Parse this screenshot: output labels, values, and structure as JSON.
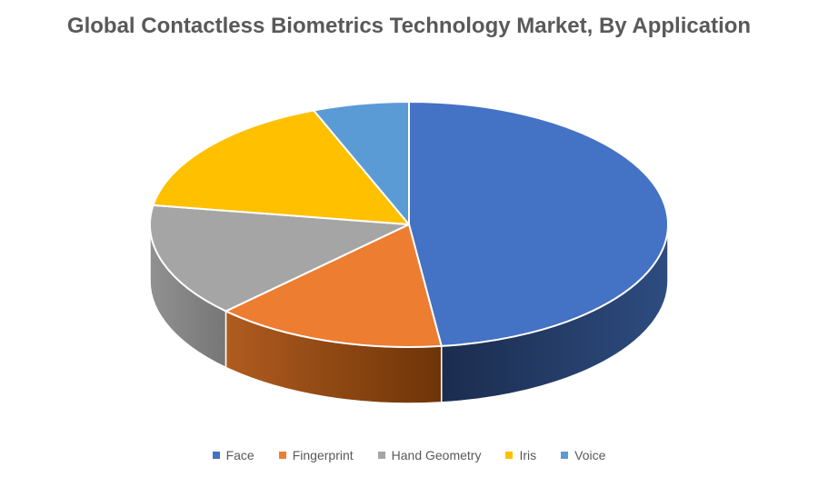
{
  "chart_data": {
    "type": "pie",
    "style": "3d",
    "title": "Global Contactless Biometrics Technology Market, By Application",
    "title_color": "#595959",
    "background_color": "#ffffff",
    "legend_position": "bottom",
    "legend_text_color": "#595959",
    "direction": "clockwise",
    "start_angle_deg": 0,
    "data_labels_shown": false,
    "categories": [
      "Face",
      "Fingerprint",
      "Hand Geometry",
      "Iris",
      "Voice"
    ],
    "values": [
      48,
      14.5,
      15,
      16.5,
      6
    ],
    "values_are_estimated_percent": true,
    "colors": [
      "#4472C4",
      "#ED7D31",
      "#A5A5A5",
      "#FFC000",
      "#5B9BD5"
    ],
    "slices": [
      {
        "label": "Face",
        "value": 48,
        "color": "#4472C4",
        "side": [
          "#2e4c80",
          "#1b2c4e"
        ]
      },
      {
        "label": "Fingerprint",
        "value": 14.5,
        "color": "#ED7D31",
        "side": [
          "#6e3408",
          "#b05c1f"
        ]
      },
      {
        "label": "Hand Geometry",
        "value": 15,
        "color": "#A5A5A5",
        "side": [
          "#767676",
          "#919191"
        ]
      },
      {
        "label": "Iris",
        "value": 16.5,
        "color": "#FFC000",
        "side": null
      },
      {
        "label": "Voice",
        "value": 6,
        "color": "#5B9BD5",
        "side": null
      }
    ]
  }
}
